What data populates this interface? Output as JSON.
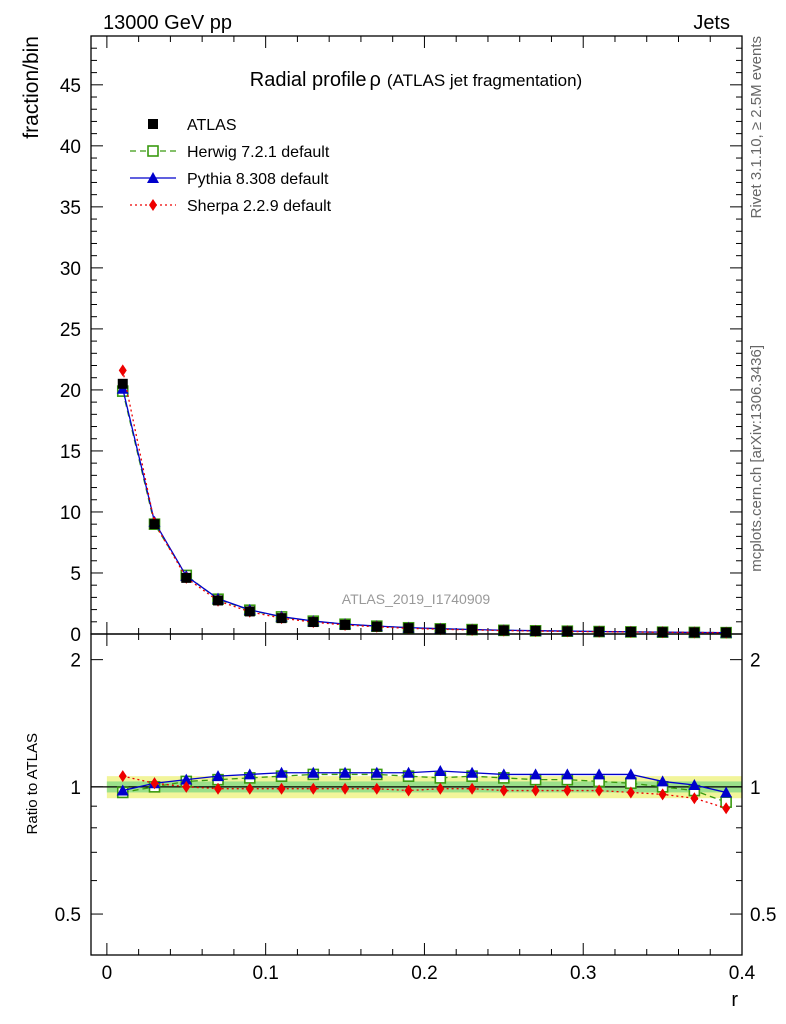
{
  "header": {
    "energy_label": "13000 GeV pp",
    "category_label": "Jets"
  },
  "side": {
    "rivet_label": "Rivet 3.1.10, ≥ 2.5M events",
    "source_label": "mcplots.cern.ch [arXiv:1306.3436]"
  },
  "main_plot": {
    "title": "Radial profile",
    "title_symbol": "ρ",
    "title_suffix": "(ATLAS jet fragmentation)",
    "ylabel": "fraction/bin",
    "analysis_id": "ATLAS_2019_I1740909"
  },
  "ratio_plot": {
    "ylabel": "Ratio to ATLAS",
    "xlabel": "r"
  },
  "colors": {
    "atlas": "#000000",
    "herwig": "#3a9a10",
    "pythia": "#0000cc",
    "sherpa": "#ee0000",
    "band_inner": "#9be08a",
    "band_outer": "#f2f59a"
  },
  "chart_data": [
    {
      "type": "line",
      "panel": "main",
      "title": "Radial profile ρ (ATLAS jet fragmentation)",
      "xlabel": "",
      "ylabel": "fraction/bin",
      "xlim": [
        -0.01,
        0.4
      ],
      "ylim": [
        0,
        49
      ],
      "x_ticks": [
        0,
        0.1,
        0.2,
        0.3,
        0.4
      ],
      "y_ticks": [
        0,
        5,
        10,
        15,
        20,
        25,
        30,
        35,
        40,
        45
      ],
      "y_tick_labels": [
        "0",
        "5",
        "10",
        "15",
        "20",
        "25",
        "30",
        "35",
        "40",
        "45"
      ],
      "legend_position": "top-left",
      "x": [
        0.01,
        0.03,
        0.05,
        0.07,
        0.09,
        0.11,
        0.13,
        0.15,
        0.17,
        0.19,
        0.21,
        0.23,
        0.25,
        0.27,
        0.29,
        0.31,
        0.33,
        0.35,
        0.37,
        0.39
      ],
      "series": [
        {
          "name": "ATLAS",
          "key": "atlas",
          "marker": "square",
          "values": [
            20.5,
            9.0,
            4.6,
            2.75,
            1.85,
            1.3,
            0.98,
            0.75,
            0.6,
            0.48,
            0.4,
            0.34,
            0.29,
            0.25,
            0.22,
            0.19,
            0.17,
            0.15,
            0.13,
            0.12
          ]
        },
        {
          "name": "Herwig 7.2.1 default",
          "key": "herwig",
          "marker": "open-square",
          "dash": "dashed",
          "values": [
            19.9,
            9.0,
            4.8,
            2.85,
            1.95,
            1.4,
            1.05,
            0.8,
            0.64,
            0.51,
            0.42,
            0.36,
            0.3,
            0.26,
            0.23,
            0.2,
            0.17,
            0.15,
            0.13,
            0.11
          ]
        },
        {
          "name": "Pythia 8.308 default",
          "key": "pythia",
          "marker": "triangle",
          "dash": "solid",
          "values": [
            20.1,
            9.2,
            4.75,
            2.9,
            1.98,
            1.42,
            1.06,
            0.81,
            0.65,
            0.52,
            0.44,
            0.37,
            0.31,
            0.27,
            0.24,
            0.205,
            0.18,
            0.155,
            0.13,
            0.115
          ]
        },
        {
          "name": "Sherpa 2.2.9 default",
          "key": "sherpa",
          "marker": "diamond",
          "dash": "dotted",
          "values": [
            21.6,
            9.1,
            4.6,
            2.72,
            1.82,
            1.3,
            0.97,
            0.74,
            0.59,
            0.46,
            0.39,
            0.33,
            0.28,
            0.24,
            0.21,
            0.18,
            0.16,
            0.14,
            0.12,
            0.105
          ]
        }
      ]
    },
    {
      "type": "line",
      "panel": "ratio",
      "title": "",
      "xlabel": "r",
      "ylabel": "Ratio to ATLAS",
      "xlim": [
        -0.01,
        0.4
      ],
      "ylim": [
        0.4,
        2.3
      ],
      "scale": "log",
      "x_ticks": [
        0,
        0.1,
        0.2,
        0.3,
        0.4
      ],
      "x_tick_labels": [
        "0",
        "0.1",
        "0.2",
        "0.3",
        "0.4"
      ],
      "y_ticks": [
        0.5,
        1,
        2
      ],
      "y_tick_labels": [
        "0.5",
        "1",
        "2"
      ],
      "x": [
        0.01,
        0.03,
        0.05,
        0.07,
        0.09,
        0.11,
        0.13,
        0.15,
        0.17,
        0.19,
        0.21,
        0.23,
        0.25,
        0.27,
        0.29,
        0.31,
        0.33,
        0.35,
        0.37,
        0.39
      ],
      "band": {
        "inner": 0.03,
        "outer": 0.06
      },
      "series": [
        {
          "name": "Herwig 7.2.1 default",
          "key": "herwig",
          "marker": "open-square",
          "dash": "dashed",
          "values": [
            0.97,
            1.0,
            1.03,
            1.04,
            1.05,
            1.06,
            1.07,
            1.07,
            1.07,
            1.06,
            1.05,
            1.06,
            1.05,
            1.04,
            1.04,
            1.03,
            1.02,
            1.0,
            0.98,
            0.92
          ]
        },
        {
          "name": "Pythia 8.308 default",
          "key": "pythia",
          "marker": "triangle",
          "dash": "solid",
          "values": [
            0.98,
            1.02,
            1.04,
            1.06,
            1.07,
            1.08,
            1.08,
            1.08,
            1.08,
            1.08,
            1.09,
            1.08,
            1.07,
            1.07,
            1.07,
            1.07,
            1.07,
            1.03,
            1.01,
            0.97
          ]
        },
        {
          "name": "Sherpa 2.2.9 default",
          "key": "sherpa",
          "marker": "diamond",
          "dash": "dotted",
          "values": [
            1.06,
            1.02,
            1.0,
            0.99,
            0.99,
            0.99,
            0.99,
            0.99,
            0.99,
            0.98,
            0.99,
            0.99,
            0.98,
            0.98,
            0.98,
            0.98,
            0.97,
            0.96,
            0.94,
            0.89
          ]
        }
      ]
    }
  ]
}
